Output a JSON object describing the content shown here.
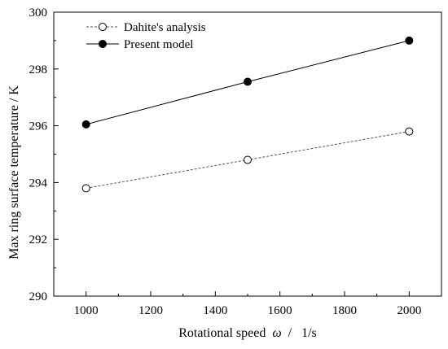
{
  "chart_data": {
    "type": "line",
    "title": "",
    "xlabel": "Rotational speed",
    "xlabel_symbol": "ω",
    "xlabel_sep": "/",
    "xlabel_unit": "1/s",
    "ylabel": "Max ring surface temperature  /  K",
    "xlim": [
      900,
      2100
    ],
    "ylim": [
      290,
      300
    ],
    "xticks": [
      1000,
      1200,
      1400,
      1600,
      1800,
      2000
    ],
    "yticks": [
      290,
      292,
      294,
      296,
      298,
      300
    ],
    "grid": false,
    "legend_position": "top-left",
    "series": [
      {
        "name": "Dahite's analysis",
        "x": [
          1000,
          1500,
          2000
        ],
        "y": [
          293.8,
          294.8,
          295.8
        ],
        "line_style": "dashed",
        "marker": "open-circle",
        "color": "#555555"
      },
      {
        "name": "Present model",
        "x": [
          1000,
          1500,
          2000
        ],
        "y": [
          296.05,
          297.55,
          299.0
        ],
        "line_style": "solid",
        "marker": "filled-circle",
        "color": "#000000"
      }
    ]
  }
}
